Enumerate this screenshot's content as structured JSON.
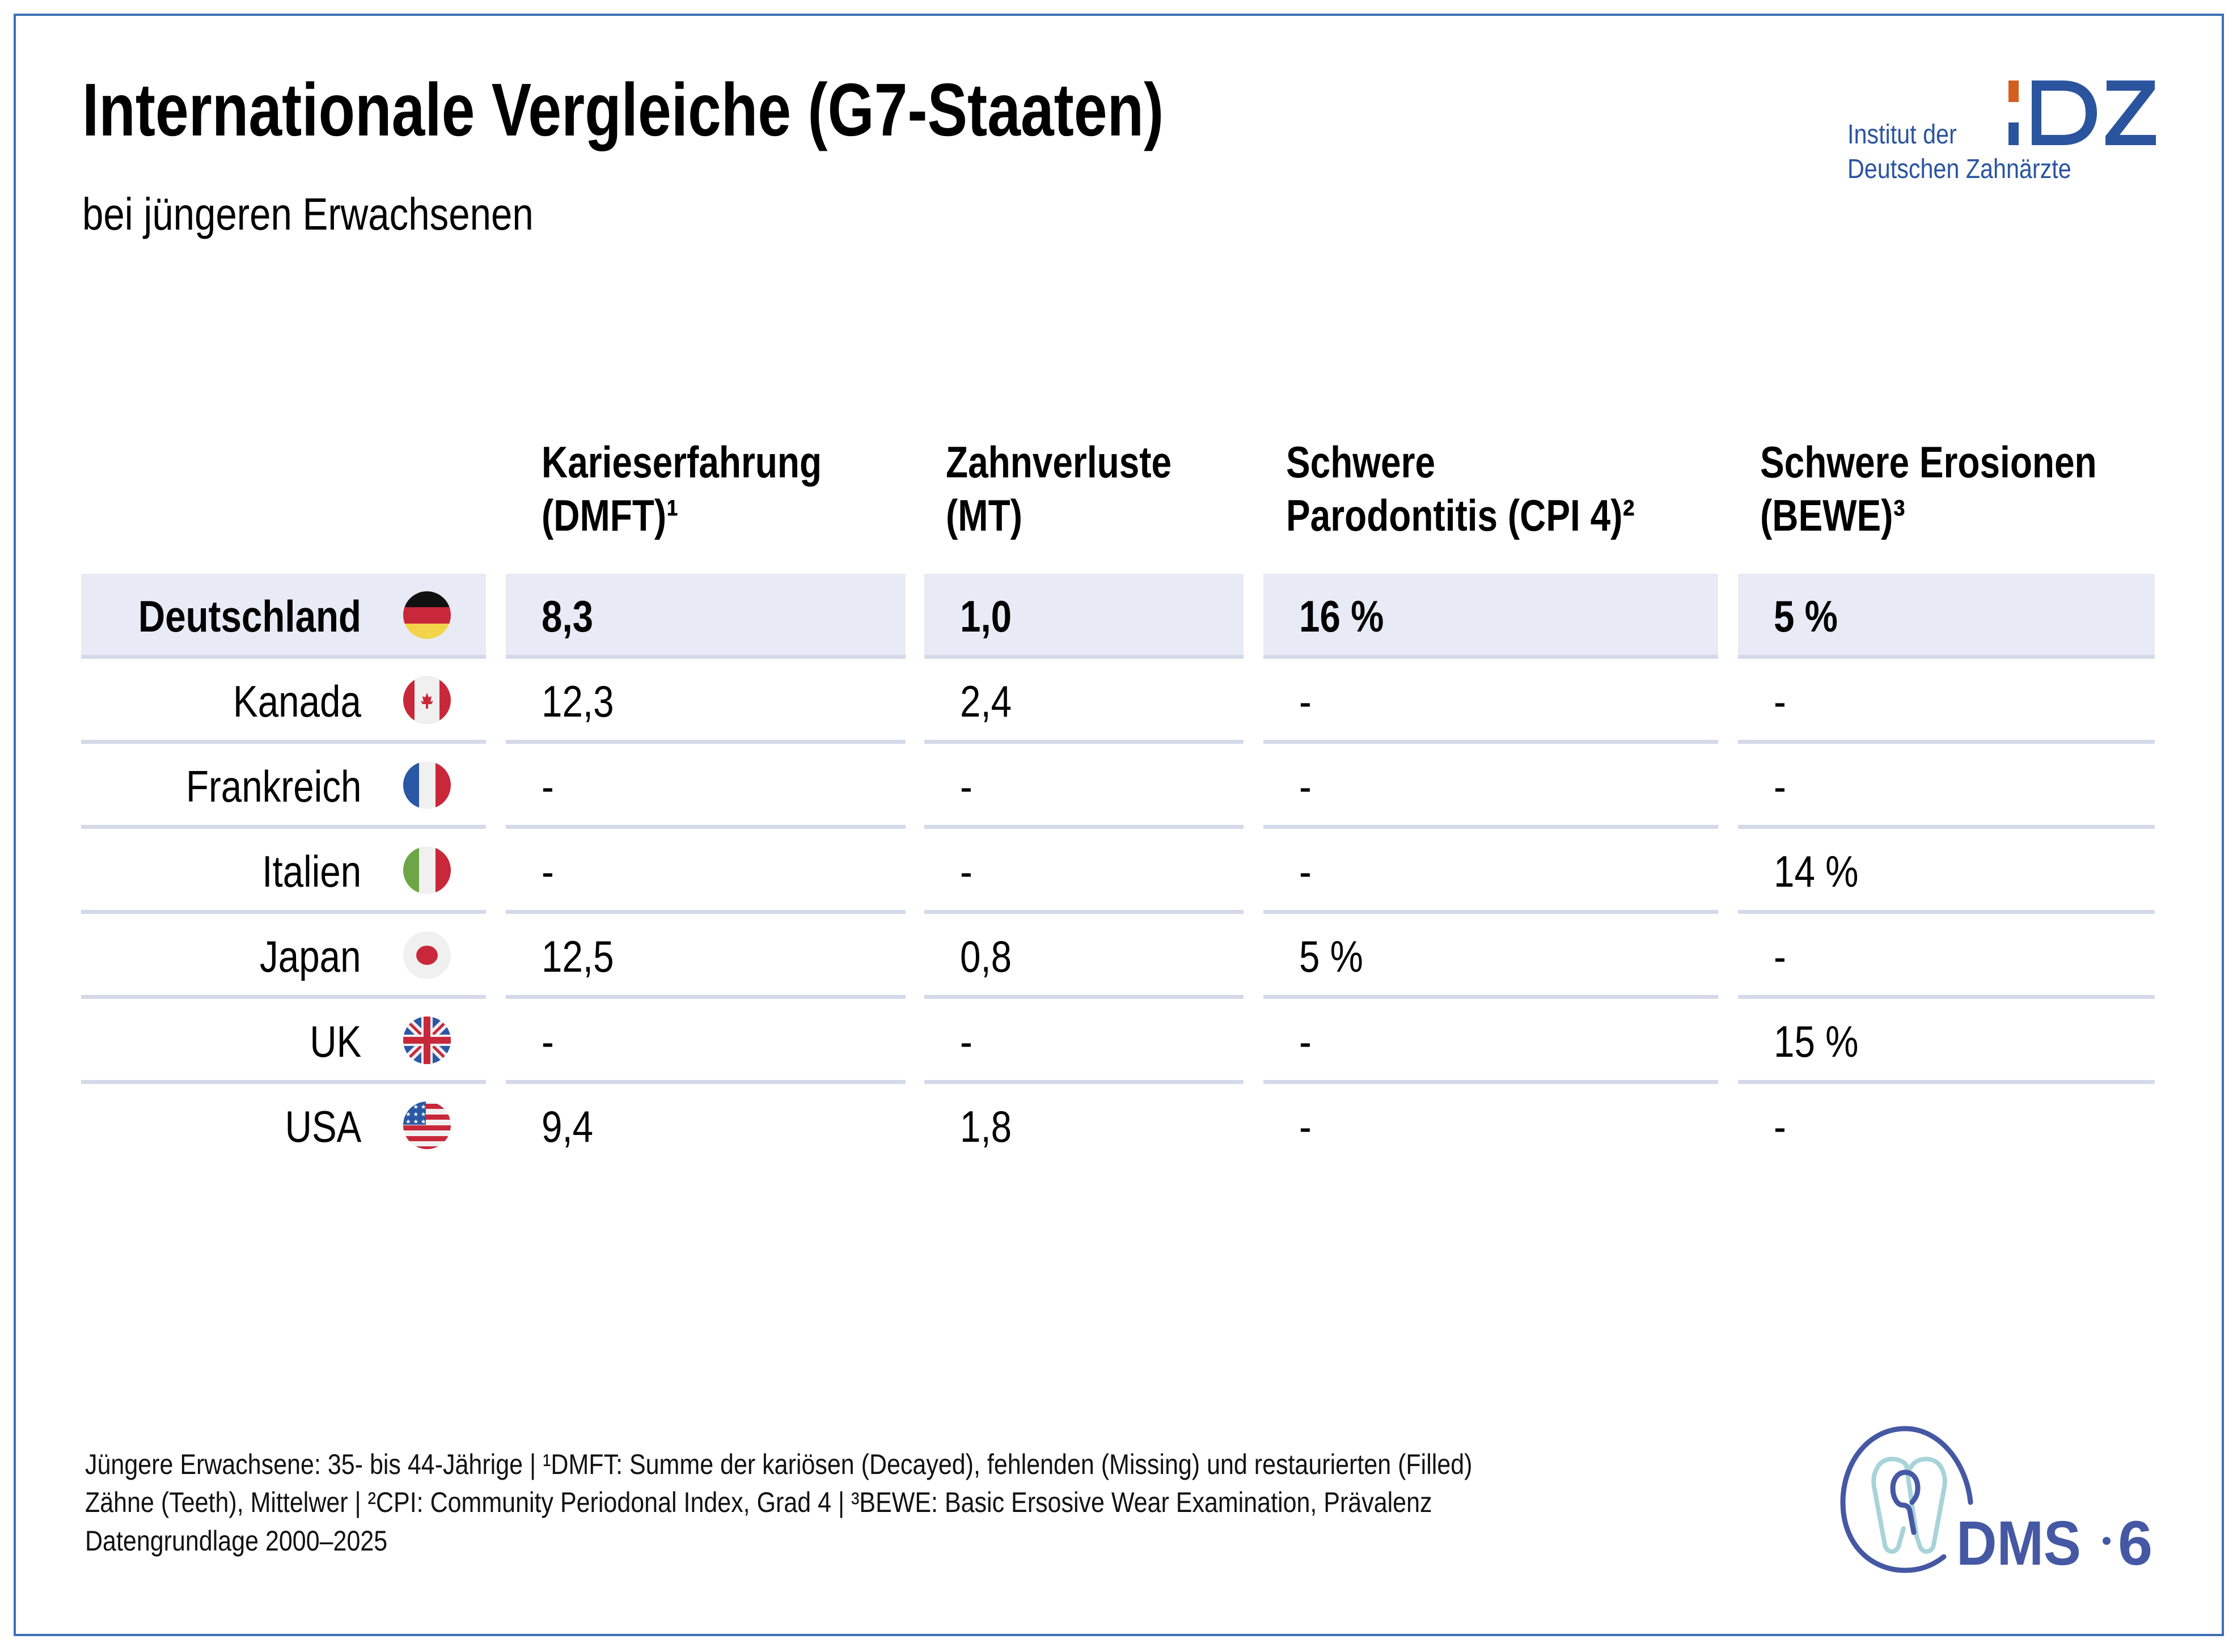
{
  "header": {
    "title": "Internationale Vergleiche (G7-Staaten)",
    "subtitle": "bei jüngeren Erwachsenen"
  },
  "logo_idz": {
    "mark": "IDZ",
    "line1": "Institut der",
    "line2": "Deutschen Zahnärzte",
    "colors": {
      "blue": "#2a549e",
      "orange": "#d35e1e"
    }
  },
  "logo_dms": {
    "text": "DMS",
    "number": "6",
    "icon": "tooth-icon",
    "colors": {
      "blue": "#4558a4",
      "light": "#a8d3d9"
    }
  },
  "table": {
    "columns": [
      {
        "line1": "Karieserfahrung",
        "line2": "(DMFT)¹"
      },
      {
        "line1": "Zahnverluste",
        "line2": "(MT)"
      },
      {
        "line1": "Schwere",
        "line2": "Parodontitis (CPI 4)²"
      },
      {
        "line1": "Schwere Erosionen",
        "line2": "(BEWE)³"
      }
    ],
    "rows": [
      {
        "country": "Deutschland",
        "flag": "germany-flag-icon",
        "highlight": true,
        "values": [
          "8,3",
          "1,0",
          "16 %",
          "5 %"
        ]
      },
      {
        "country": "Kanada",
        "flag": "canada-flag-icon",
        "highlight": false,
        "values": [
          "12,3",
          "2,4",
          "-",
          "-"
        ]
      },
      {
        "country": "Frankreich",
        "flag": "france-flag-icon",
        "highlight": false,
        "values": [
          "-",
          "-",
          "-",
          "-"
        ]
      },
      {
        "country": "Italien",
        "flag": "italy-flag-icon",
        "highlight": false,
        "values": [
          "-",
          "-",
          "-",
          "14 %"
        ]
      },
      {
        "country": "Japan",
        "flag": "japan-flag-icon",
        "highlight": false,
        "values": [
          "12,5",
          "0,8",
          "5 %",
          "-"
        ]
      },
      {
        "country": "UK",
        "flag": "uk-flag-icon",
        "highlight": false,
        "values": [
          "-",
          "-",
          "-",
          "15 %"
        ]
      },
      {
        "country": "USA",
        "flag": "usa-flag-icon",
        "highlight": false,
        "values": [
          "9,4",
          "1,8",
          "-",
          "-"
        ]
      }
    ],
    "colors": {
      "highlight_bg": "#e8ebf5",
      "divider": "#d4d9ea"
    }
  },
  "footer": {
    "line1": "Jüngere Erwachsene: 35- bis 44-Jährige | ¹DMFT: Summe der kariösen (Decayed), fehlenden (Missing) und restaurierten (Filled)",
    "line2": "Zähne (Teeth), Mittelwer | ²CPI: Community Periodonal Index, Grad 4 | ³BEWE: Basic Ersosive Wear Examination, Prävalenz",
    "line3": "Datengrundlage 2000–2025"
  },
  "frame_color": "#3d6fb6"
}
